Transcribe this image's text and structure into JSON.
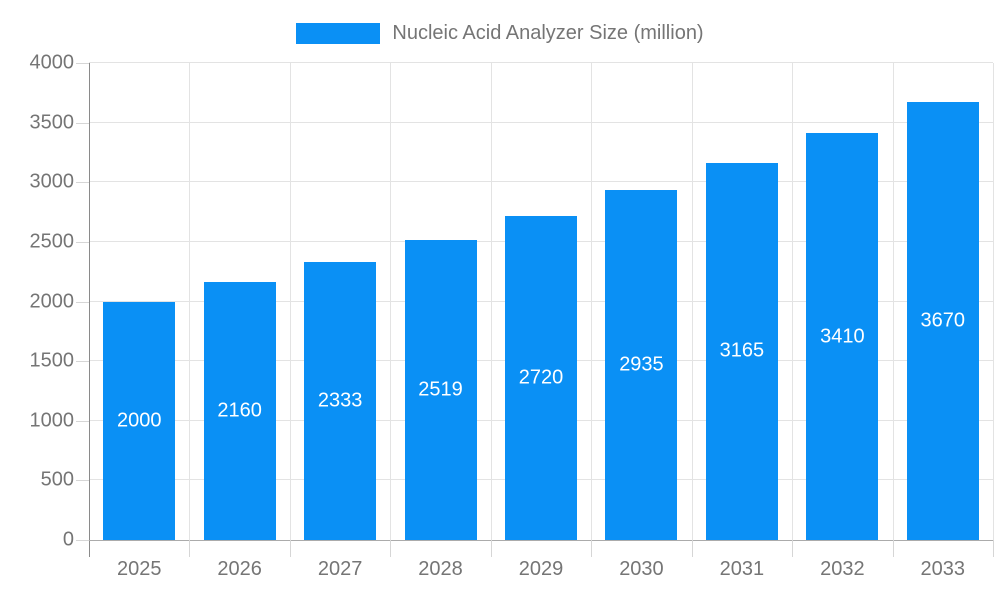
{
  "chart_data": {
    "type": "bar",
    "title": "Nucleic Acid Analyzer Size (million)",
    "categories": [
      "2025",
      "2026",
      "2027",
      "2028",
      "2029",
      "2030",
      "2031",
      "2032",
      "2033"
    ],
    "values": [
      2000,
      2160,
      2333,
      2519,
      2720,
      2935,
      3165,
      3410,
      3670
    ],
    "xlabel": "",
    "ylabel": "",
    "ylim": [
      0,
      4000
    ],
    "yticks": [
      0,
      500,
      1000,
      1500,
      2000,
      2500,
      3000,
      3500,
      4000
    ],
    "grid": "on",
    "legend_position": "top",
    "bar_color": "#0a90f5",
    "bar_label_color": "#ffffff",
    "axis_text_color": "#757575",
    "gridline_color": "#e3e3e3"
  },
  "legend": {
    "label": "Nucleic Acid Analyzer Size (million)"
  }
}
